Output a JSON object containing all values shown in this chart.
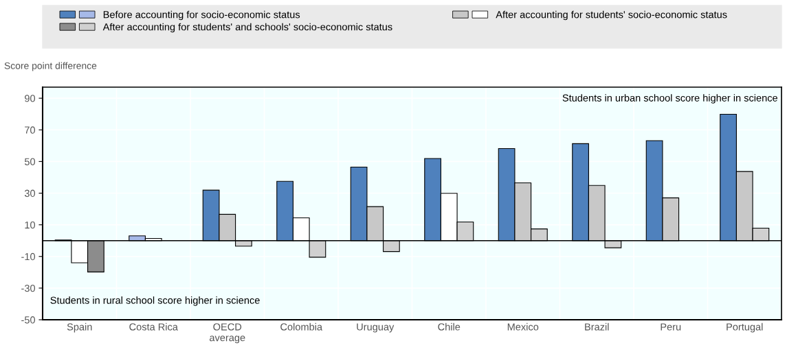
{
  "chart_data": {
    "type": "bar",
    "ylabel": "Score point difference",
    "categories": [
      "Spain",
      "Costa Rica",
      "OECD\naverage",
      "Colombia",
      "Uruguay",
      "Chile",
      "Mexico",
      "Brazil",
      "Peru",
      "Portugal"
    ],
    "series": [
      {
        "name": "Before accounting for socio-economic status",
        "colors": [
          "#4f81bd",
          "#a6b9e8",
          "#4f81bd",
          "#4f81bd",
          "#4f81bd",
          "#4f81bd",
          "#4f81bd",
          "#4f81bd",
          "#4f81bd",
          "#4f81bd"
        ],
        "values": [
          0.4,
          3.0,
          31.9,
          37.5,
          46.5,
          51.9,
          58.2,
          61.3,
          63.2,
          79.9
        ]
      },
      {
        "name": "After accounting for students' socio-economic status",
        "colors": [
          "#ffffff",
          "#ffffff",
          "#c8c8c8",
          "#ffffff",
          "#c8c8c8",
          "#ffffff",
          "#c8c8c8",
          "#c8c8c8",
          "#c8c8c8",
          "#c8c8c8"
        ],
        "values": [
          -14.0,
          1.4,
          16.6,
          14.4,
          21.5,
          29.9,
          36.5,
          34.9,
          27.0,
          43.7
        ]
      },
      {
        "name": "After accounting for students' and schools' socio-economic status",
        "colors": [
          "#8c8c8c",
          "#d0d0d0",
          "#d0d0d0",
          "#d0d0d0",
          "#d0d0d0",
          "#d0d0d0",
          "#d0d0d0",
          "#d0d0d0",
          "#d0d0d0",
          "#d0d0d0"
        ],
        "values": [
          -19.8,
          null,
          -3.5,
          -10.5,
          -6.9,
          11.8,
          7.4,
          -4.5,
          null,
          7.9
        ]
      }
    ],
    "ylim": [
      -50,
      97
    ],
    "yticks": [
      -50,
      -30,
      -10,
      10,
      30,
      50,
      70,
      90
    ],
    "grid": true,
    "legend": "top",
    "annotations": [
      {
        "text": "Students in urban school score higher in science"
      },
      {
        "text": "Students in rural school score higher in science"
      }
    ]
  }
}
